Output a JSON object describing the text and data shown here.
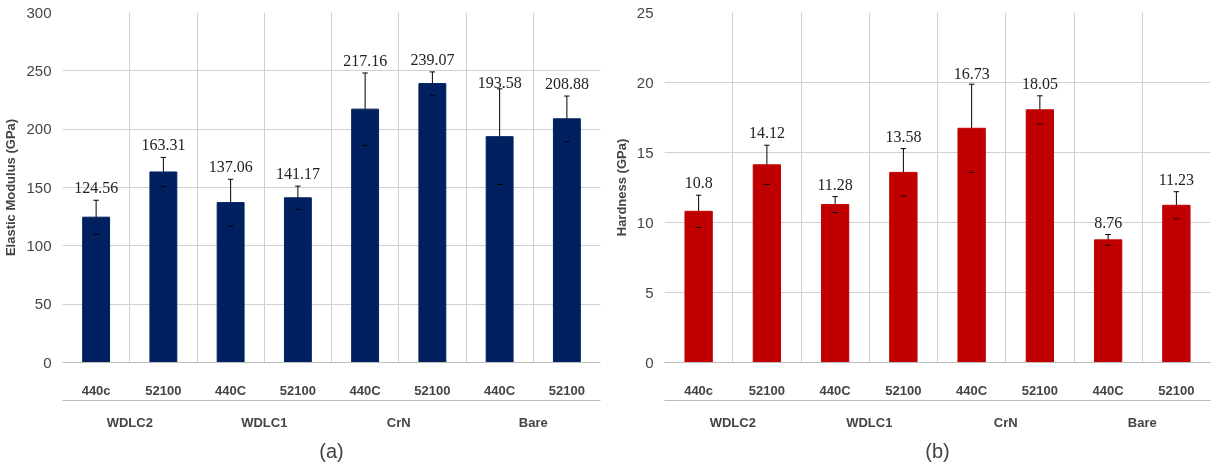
{
  "chart_data": [
    {
      "type": "bar",
      "ylabel": "Elastic Modulus (GPa)",
      "categories": [
        "440c",
        "52100",
        "440C",
        "52100",
        "440C",
        "52100",
        "440C",
        "52100"
      ],
      "values": [
        124.56,
        163.31,
        137.06,
        141.17,
        217.16,
        239.07,
        193.58,
        208.88
      ],
      "errors": [
        14.5,
        12.5,
        20,
        10,
        31,
        10,
        41,
        19.5
      ],
      "color": "#002060",
      "ylim": [
        0,
        300
      ],
      "yticks": [
        0,
        50,
        100,
        150,
        200,
        250,
        300
      ],
      "grid": true,
      "data_labels": true,
      "annotations": [
        "WDLC2",
        "WDLC1",
        "CrN",
        "Bare",
        "(a)"
      ]
    },
    {
      "type": "bar",
      "ylabel": "Hardness (GPa)",
      "categories": [
        "440c",
        "52100",
        "440C",
        "52100",
        "440C",
        "52100",
        "440C",
        "52100"
      ],
      "values": [
        10.8,
        14.12,
        11.28,
        13.58,
        16.73,
        18.05,
        8.76,
        11.23
      ],
      "errors": [
        1.15,
        1.4,
        0.57,
        1.7,
        3.15,
        1.0,
        0.38,
        0.97
      ],
      "color": "#c00000",
      "ylim": [
        0,
        25
      ],
      "yticks": [
        0,
        5,
        10,
        15,
        20,
        25
      ],
      "grid": true,
      "data_labels": true,
      "annotations": [
        "WDLC2",
        "WDLC1",
        "CrN",
        "Bare",
        "(b)"
      ]
    }
  ]
}
